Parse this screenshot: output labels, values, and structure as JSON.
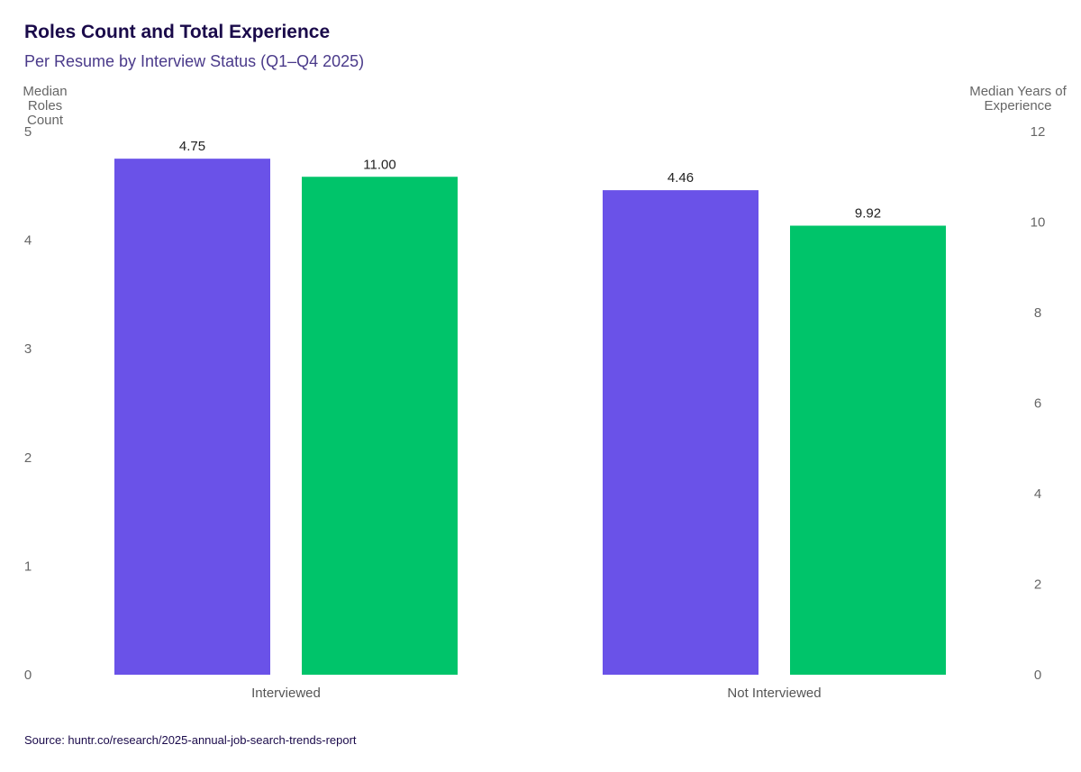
{
  "header": {
    "title": "Roles Count and Total Experience",
    "subtitle": "Per Resume by Interview Status (Q1–Q4 2025)"
  },
  "axes": {
    "left_title_line1": "Median",
    "left_title_line2": "Roles Count",
    "right_title_line1": "Median Years of",
    "right_title_line2": "Experience"
  },
  "footer": {
    "source": "Source: huntr.co/research/2025-annual-job-search-trends-report"
  },
  "chart_data": {
    "type": "bar",
    "categories": [
      "Interviewed",
      "Not Interviewed"
    ],
    "series": [
      {
        "axis": "left",
        "color": "#6a52e8",
        "values": [
          4.75,
          4.46
        ],
        "labels": [
          "4.75",
          "4.46"
        ]
      },
      {
        "axis": "right",
        "color": "#00c46a",
        "values": [
          11.0,
          9.92
        ],
        "labels": [
          "11.00",
          "9.92"
        ]
      }
    ],
    "y_left": {
      "range": [
        0,
        5
      ],
      "ticks": [
        0,
        1,
        2,
        3,
        4,
        5
      ]
    },
    "y_right": {
      "range": [
        0,
        12
      ],
      "ticks": [
        0,
        2,
        4,
        6,
        8,
        10,
        12
      ]
    },
    "grid": false,
    "legend": "none"
  }
}
